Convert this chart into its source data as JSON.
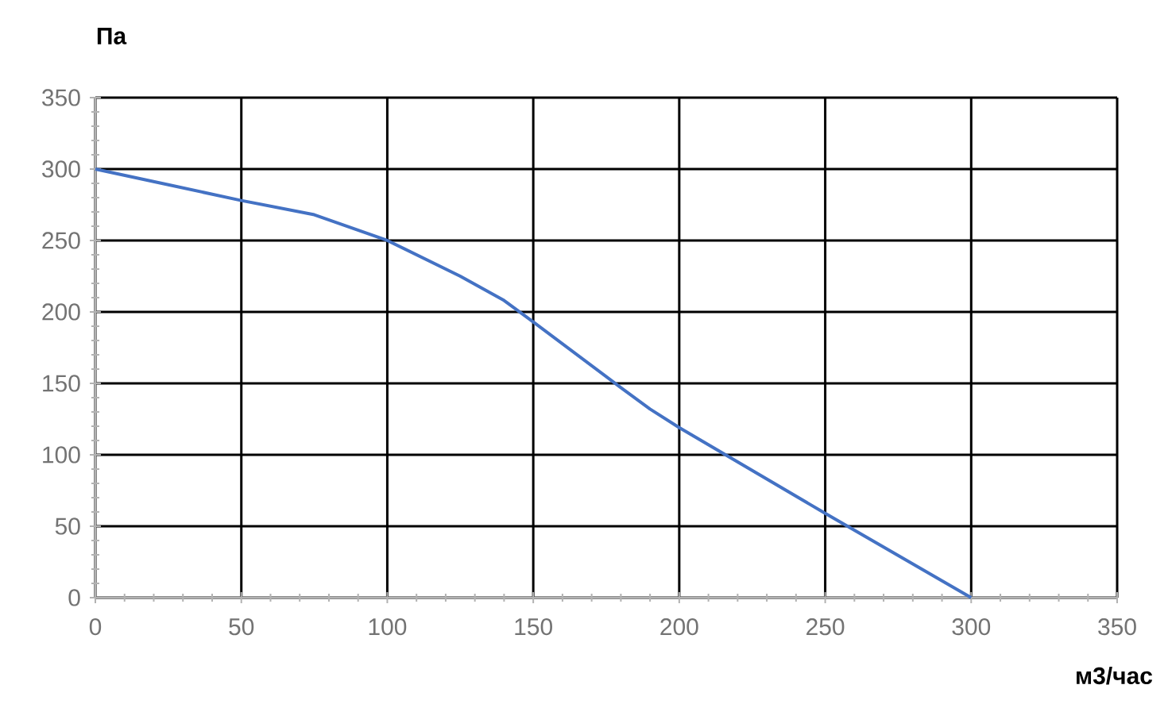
{
  "chart_data": {
    "type": "line",
    "xlabel": "м3/час",
    "ylabel": "Па",
    "xlim": [
      0,
      350
    ],
    "xticks": [
      0,
      50,
      100,
      150,
      200,
      250,
      300,
      350
    ],
    "ylim": [
      0,
      350
    ],
    "yticks": [
      0,
      50,
      100,
      150,
      200,
      250,
      300,
      350
    ],
    "grid": true,
    "series": [
      {
        "color": "#4472c4",
        "x": [
          0,
          25,
          50,
          75,
          100,
          125,
          140,
          150,
          180,
          190,
          200,
          250,
          300
        ],
        "values": [
          300,
          289,
          278,
          268,
          250,
          225,
          208,
          193,
          147,
          132,
          119,
          59,
          0
        ]
      }
    ]
  }
}
